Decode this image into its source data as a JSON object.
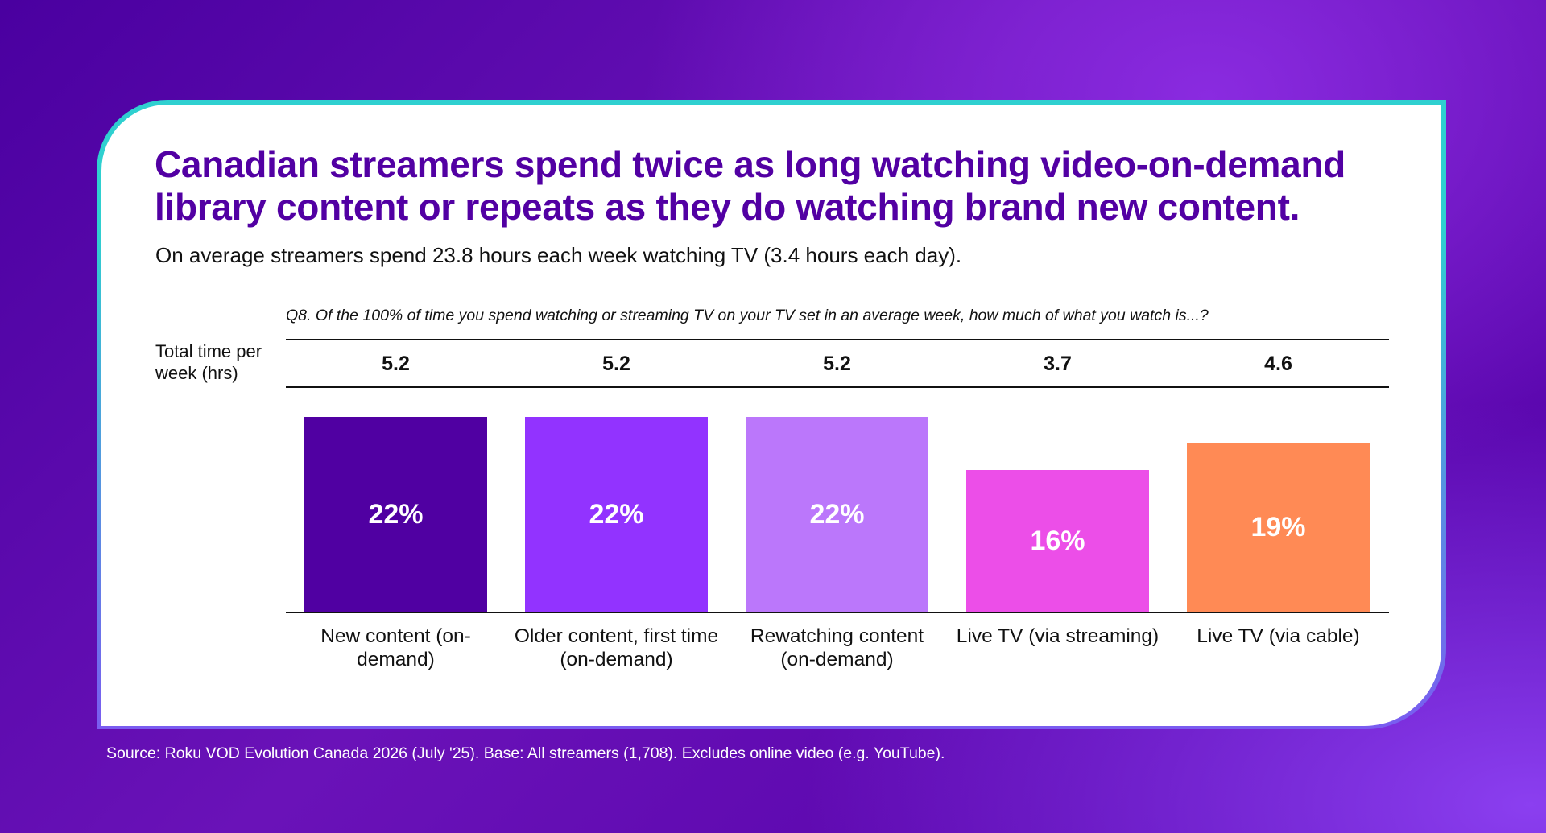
{
  "title": "Canadian streamers spend twice as long watching video-on-demand library content or repeats as they do watching brand new content.",
  "subtitle": "On average streamers spend 23.8 hours each week watching TV (3.4 hours each day).",
  "question": "Q8. Of the 100% of time you spend watching or streaming TV on your TV set in an average week, how much of what you watch is...?",
  "row_label": "Total time per week (hrs)",
  "source": "Source: Roku VOD Evolution Canada 2026 (July '25). Base: All streamers (1,708). Excludes online video (e.g. YouTube).",
  "chart_data": {
    "type": "bar",
    "categories": [
      "New content (on-demand)",
      "Older content, first time (on-demand)",
      "Rewatching content (on-demand)",
      "Live TV (via streaming)",
      "Live TV (via cable)"
    ],
    "category_labels": [
      "New content (on-\ndemand)",
      "Older content, first time\n(on-demand)",
      "Rewatching content\n(on-demand)",
      "Live TV (via streaming)",
      "Live TV (via cable)"
    ],
    "values": [
      22,
      22,
      22,
      16,
      19
    ],
    "value_labels": [
      "22%",
      "22%",
      "22%",
      "16%",
      "19%"
    ],
    "hours_per_week": [
      "5.2",
      "5.2",
      "5.2",
      "3.7",
      "4.6"
    ],
    "colors": [
      "#5000a2",
      "#9233ff",
      "#bb77fb",
      "#ec4ee8",
      "#ff8a55"
    ],
    "unit": "%",
    "grid": false
  },
  "colors": {
    "title": "#5200a3",
    "card_border": "#2fd0d0"
  }
}
